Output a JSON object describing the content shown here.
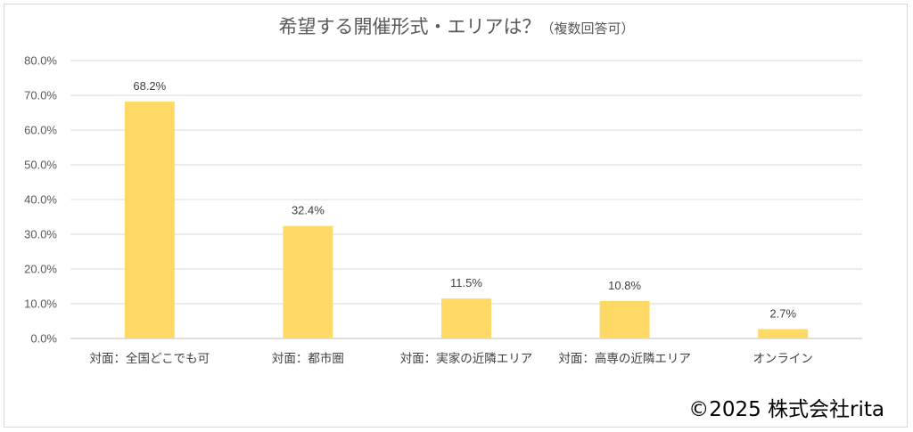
{
  "chart_data": {
    "type": "bar",
    "title": "希望する開催形式・エリアは？",
    "subtitle": "（複数回答可）",
    "categories": [
      "対面：全国どこでも可",
      "対面：都市圏",
      "対面：実家の近隣エリア",
      "対面：高専の近隣エリア",
      "オンライン"
    ],
    "values": [
      68.2,
      32.4,
      11.5,
      10.8,
      2.7
    ],
    "data_labels": [
      "68.2%",
      "32.4%",
      "11.5%",
      "10.8%",
      "2.7%"
    ],
    "ylim": [
      0,
      80
    ],
    "yticks": [
      "0.0%",
      "10.0%",
      "20.0%",
      "30.0%",
      "40.0%",
      "50.0%",
      "60.0%",
      "70.0%",
      "80.0%"
    ],
    "xlabel": "",
    "ylabel": "",
    "grid": true,
    "legend": "none",
    "bar_color": "#FFD966"
  },
  "credit": "©2025 株式会社rita"
}
